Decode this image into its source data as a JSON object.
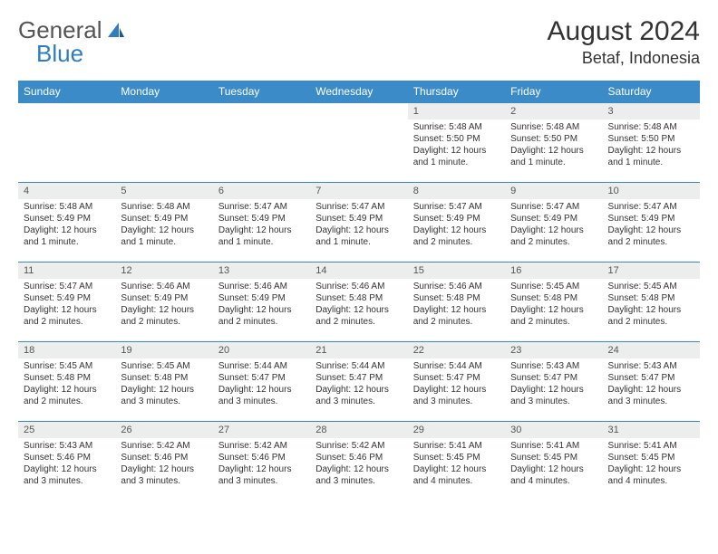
{
  "logo": {
    "general": "General",
    "blue": "Blue"
  },
  "title": "August 2024",
  "location": "Betaf, Indonesia",
  "colors": {
    "header_bg": "#3b8bc9",
    "header_text": "#ffffff",
    "daynum_bg": "#eceded",
    "border": "#3b8bc9",
    "text": "#333333",
    "logo_gray": "#555555",
    "logo_blue": "#2d7dc0"
  },
  "weekdays": [
    "Sunday",
    "Monday",
    "Tuesday",
    "Wednesday",
    "Thursday",
    "Friday",
    "Saturday"
  ],
  "weeks": [
    [
      null,
      null,
      null,
      null,
      {
        "n": "1",
        "sr": "Sunrise: 5:48 AM",
        "ss": "Sunset: 5:50 PM",
        "d1": "Daylight: 12 hours",
        "d2": "and 1 minute."
      },
      {
        "n": "2",
        "sr": "Sunrise: 5:48 AM",
        "ss": "Sunset: 5:50 PM",
        "d1": "Daylight: 12 hours",
        "d2": "and 1 minute."
      },
      {
        "n": "3",
        "sr": "Sunrise: 5:48 AM",
        "ss": "Sunset: 5:50 PM",
        "d1": "Daylight: 12 hours",
        "d2": "and 1 minute."
      }
    ],
    [
      {
        "n": "4",
        "sr": "Sunrise: 5:48 AM",
        "ss": "Sunset: 5:49 PM",
        "d1": "Daylight: 12 hours",
        "d2": "and 1 minute."
      },
      {
        "n": "5",
        "sr": "Sunrise: 5:48 AM",
        "ss": "Sunset: 5:49 PM",
        "d1": "Daylight: 12 hours",
        "d2": "and 1 minute."
      },
      {
        "n": "6",
        "sr": "Sunrise: 5:47 AM",
        "ss": "Sunset: 5:49 PM",
        "d1": "Daylight: 12 hours",
        "d2": "and 1 minute."
      },
      {
        "n": "7",
        "sr": "Sunrise: 5:47 AM",
        "ss": "Sunset: 5:49 PM",
        "d1": "Daylight: 12 hours",
        "d2": "and 1 minute."
      },
      {
        "n": "8",
        "sr": "Sunrise: 5:47 AM",
        "ss": "Sunset: 5:49 PM",
        "d1": "Daylight: 12 hours",
        "d2": "and 2 minutes."
      },
      {
        "n": "9",
        "sr": "Sunrise: 5:47 AM",
        "ss": "Sunset: 5:49 PM",
        "d1": "Daylight: 12 hours",
        "d2": "and 2 minutes."
      },
      {
        "n": "10",
        "sr": "Sunrise: 5:47 AM",
        "ss": "Sunset: 5:49 PM",
        "d1": "Daylight: 12 hours",
        "d2": "and 2 minutes."
      }
    ],
    [
      {
        "n": "11",
        "sr": "Sunrise: 5:47 AM",
        "ss": "Sunset: 5:49 PM",
        "d1": "Daylight: 12 hours",
        "d2": "and 2 minutes."
      },
      {
        "n": "12",
        "sr": "Sunrise: 5:46 AM",
        "ss": "Sunset: 5:49 PM",
        "d1": "Daylight: 12 hours",
        "d2": "and 2 minutes."
      },
      {
        "n": "13",
        "sr": "Sunrise: 5:46 AM",
        "ss": "Sunset: 5:49 PM",
        "d1": "Daylight: 12 hours",
        "d2": "and 2 minutes."
      },
      {
        "n": "14",
        "sr": "Sunrise: 5:46 AM",
        "ss": "Sunset: 5:48 PM",
        "d1": "Daylight: 12 hours",
        "d2": "and 2 minutes."
      },
      {
        "n": "15",
        "sr": "Sunrise: 5:46 AM",
        "ss": "Sunset: 5:48 PM",
        "d1": "Daylight: 12 hours",
        "d2": "and 2 minutes."
      },
      {
        "n": "16",
        "sr": "Sunrise: 5:45 AM",
        "ss": "Sunset: 5:48 PM",
        "d1": "Daylight: 12 hours",
        "d2": "and 2 minutes."
      },
      {
        "n": "17",
        "sr": "Sunrise: 5:45 AM",
        "ss": "Sunset: 5:48 PM",
        "d1": "Daylight: 12 hours",
        "d2": "and 2 minutes."
      }
    ],
    [
      {
        "n": "18",
        "sr": "Sunrise: 5:45 AM",
        "ss": "Sunset: 5:48 PM",
        "d1": "Daylight: 12 hours",
        "d2": "and 2 minutes."
      },
      {
        "n": "19",
        "sr": "Sunrise: 5:45 AM",
        "ss": "Sunset: 5:48 PM",
        "d1": "Daylight: 12 hours",
        "d2": "and 3 minutes."
      },
      {
        "n": "20",
        "sr": "Sunrise: 5:44 AM",
        "ss": "Sunset: 5:47 PM",
        "d1": "Daylight: 12 hours",
        "d2": "and 3 minutes."
      },
      {
        "n": "21",
        "sr": "Sunrise: 5:44 AM",
        "ss": "Sunset: 5:47 PM",
        "d1": "Daylight: 12 hours",
        "d2": "and 3 minutes."
      },
      {
        "n": "22",
        "sr": "Sunrise: 5:44 AM",
        "ss": "Sunset: 5:47 PM",
        "d1": "Daylight: 12 hours",
        "d2": "and 3 minutes."
      },
      {
        "n": "23",
        "sr": "Sunrise: 5:43 AM",
        "ss": "Sunset: 5:47 PM",
        "d1": "Daylight: 12 hours",
        "d2": "and 3 minutes."
      },
      {
        "n": "24",
        "sr": "Sunrise: 5:43 AM",
        "ss": "Sunset: 5:47 PM",
        "d1": "Daylight: 12 hours",
        "d2": "and 3 minutes."
      }
    ],
    [
      {
        "n": "25",
        "sr": "Sunrise: 5:43 AM",
        "ss": "Sunset: 5:46 PM",
        "d1": "Daylight: 12 hours",
        "d2": "and 3 minutes."
      },
      {
        "n": "26",
        "sr": "Sunrise: 5:42 AM",
        "ss": "Sunset: 5:46 PM",
        "d1": "Daylight: 12 hours",
        "d2": "and 3 minutes."
      },
      {
        "n": "27",
        "sr": "Sunrise: 5:42 AM",
        "ss": "Sunset: 5:46 PM",
        "d1": "Daylight: 12 hours",
        "d2": "and 3 minutes."
      },
      {
        "n": "28",
        "sr": "Sunrise: 5:42 AM",
        "ss": "Sunset: 5:46 PM",
        "d1": "Daylight: 12 hours",
        "d2": "and 3 minutes."
      },
      {
        "n": "29",
        "sr": "Sunrise: 5:41 AM",
        "ss": "Sunset: 5:45 PM",
        "d1": "Daylight: 12 hours",
        "d2": "and 4 minutes."
      },
      {
        "n": "30",
        "sr": "Sunrise: 5:41 AM",
        "ss": "Sunset: 5:45 PM",
        "d1": "Daylight: 12 hours",
        "d2": "and 4 minutes."
      },
      {
        "n": "31",
        "sr": "Sunrise: 5:41 AM",
        "ss": "Sunset: 5:45 PM",
        "d1": "Daylight: 12 hours",
        "d2": "and 4 minutes."
      }
    ]
  ]
}
